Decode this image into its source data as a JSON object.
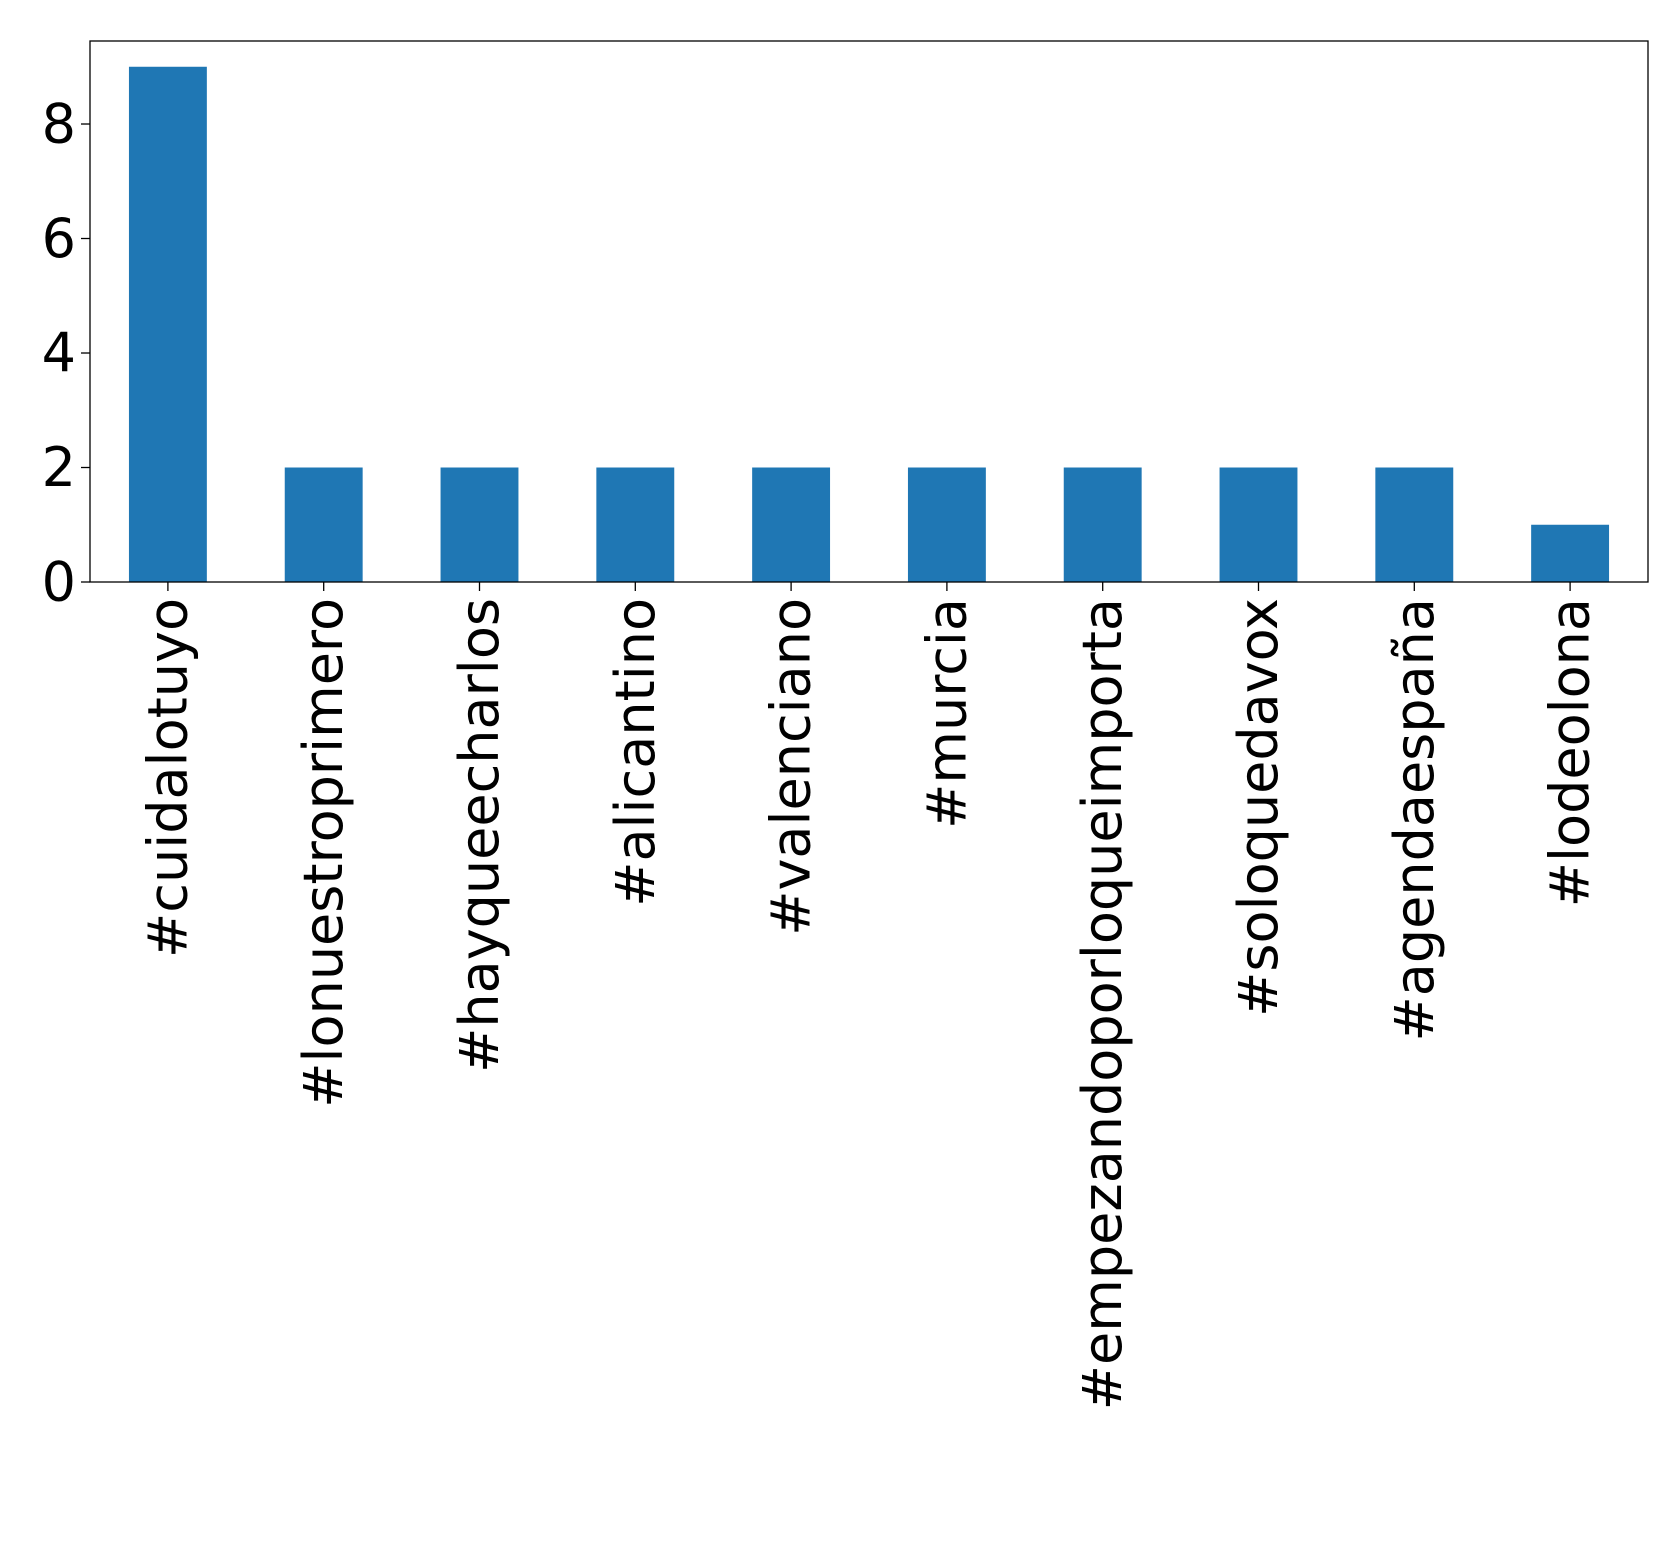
{
  "chart_data": {
    "type": "bar",
    "title": "",
    "xlabel": "",
    "ylabel": "",
    "categories": [
      "#cuidalotuyo",
      "#lonuestroprimero",
      "#hayqueecharlos",
      "#alicantino",
      "#valenciano",
      "#murcia",
      "#empezandoporloqueimporta",
      "#soloquedavox",
      "#agendaespaña",
      "#lodeolona"
    ],
    "values": [
      9,
      2,
      2,
      2,
      2,
      2,
      2,
      2,
      2,
      1
    ],
    "ylim": [
      0,
      9.45
    ],
    "yticks": [
      0,
      2,
      4,
      6,
      8
    ],
    "ytick_labels": [
      "0",
      "2",
      "4",
      "6",
      "8"
    ],
    "grid": false,
    "legend": "none",
    "colors": {
      "bar": "#1f77b4",
      "axes": "#000000",
      "background": "#ffffff"
    }
  }
}
